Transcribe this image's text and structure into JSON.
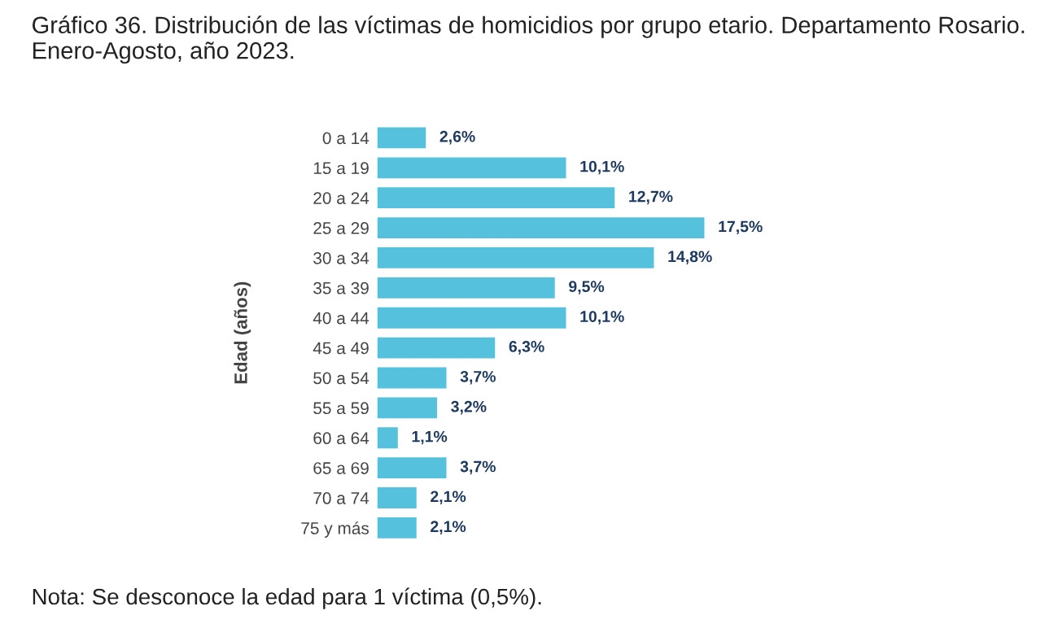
{
  "chart_data": {
    "type": "bar",
    "orientation": "horizontal",
    "title": "Gráfico 36. Distribución de las víctimas de homicidios por grupo etario. Departamento Rosario. Enero-Agosto, año 2023.",
    "ylabel": "Edad (años)",
    "categories": [
      "0 a 14",
      "15 a 19",
      "20 a 24",
      "25 a 29",
      "30 a 34",
      "35 a 39",
      "40 a 44",
      "45 a 49",
      "50 a 54",
      "55 a 59",
      "60 a 64",
      "65 a 69",
      "70 a 74",
      "75 y más"
    ],
    "values": [
      2.6,
      10.1,
      12.7,
      17.5,
      14.8,
      9.5,
      10.1,
      6.3,
      3.7,
      3.2,
      1.1,
      3.7,
      2.1,
      2.1
    ],
    "value_labels": [
      "2,6%",
      "10,1%",
      "12,7%",
      "17,5%",
      "14,8%",
      "9,5%",
      "10,1%",
      "6,3%",
      "3,7%",
      "3,2%",
      "1,1%",
      "3,7%",
      "2,1%",
      "2,1%"
    ],
    "color": "#56c1dc",
    "annotations": [
      "Nota: Se desconoce la edad para 1 víctima (0,5%)."
    ],
    "grid": false,
    "legend": false
  }
}
